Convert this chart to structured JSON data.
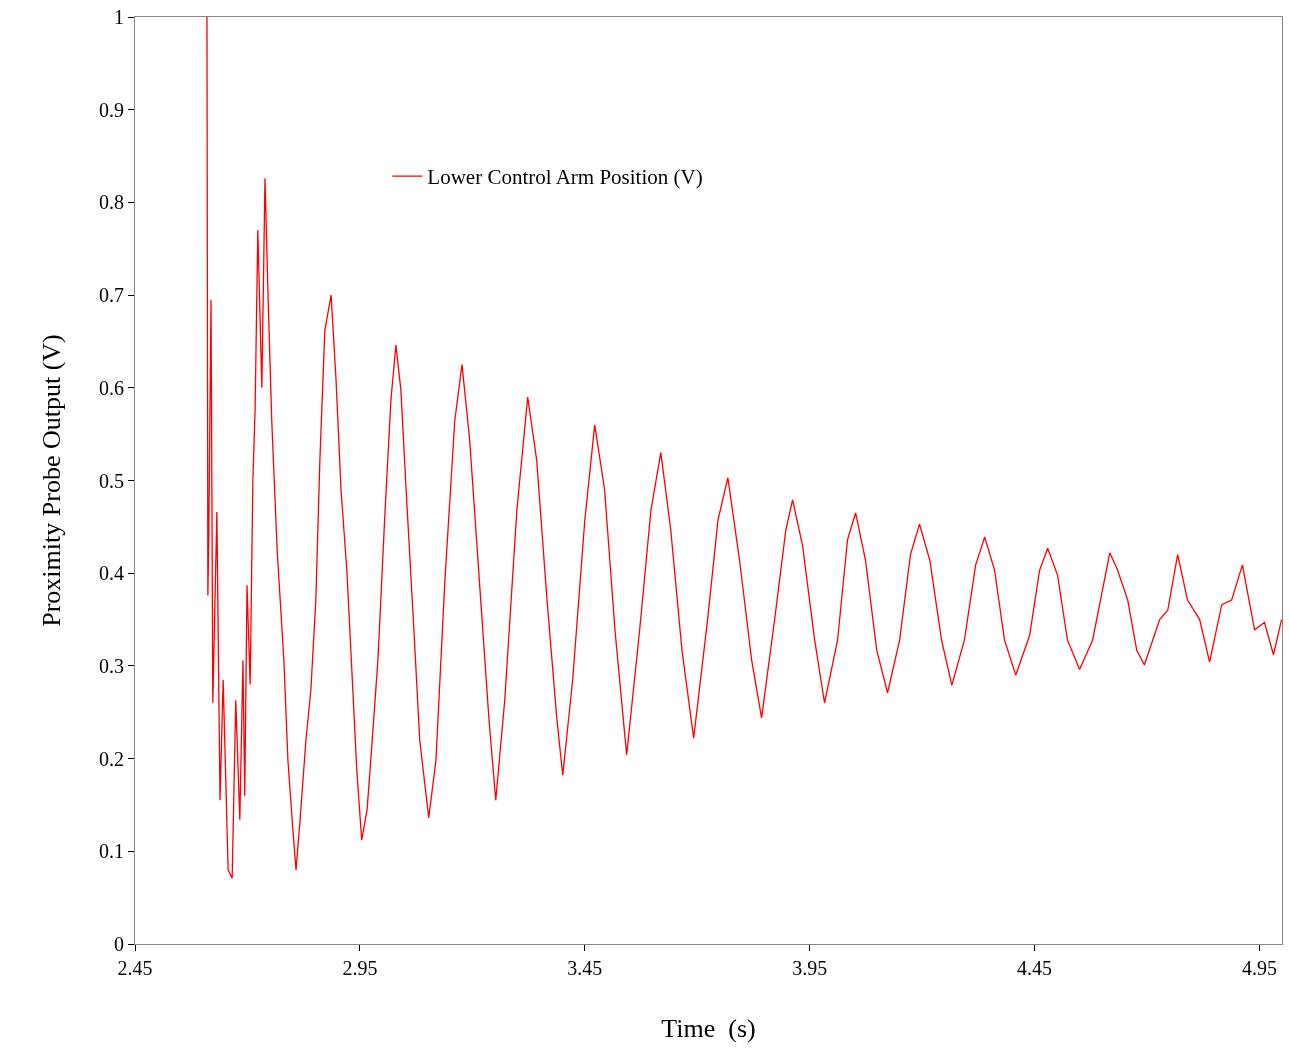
{
  "chart_data": {
    "type": "line",
    "xlabel": "Time  (s)",
    "ylabel": "Proximity Probe Output (V)",
    "xlim": [
      2.45,
      5.0
    ],
    "xticks": [
      2.45,
      2.95,
      3.45,
      3.95,
      4.45,
      4.95
    ],
    "ylim": [
      0,
      1
    ],
    "yticks": [
      0,
      0.1,
      0.2,
      0.3,
      0.4,
      0.5,
      0.6,
      0.7,
      0.8,
      0.9,
      1
    ],
    "grid": false,
    "legend": "top left",
    "marker": "none",
    "line_style": "solid",
    "series": [
      {
        "name": "Lower Control Arm Position (V)",
        "color": "#ff0000",
        "x": [
          2.61,
          2.612,
          2.614,
          2.619,
          2.623,
          2.632,
          2.639,
          2.646,
          2.657,
          2.666,
          2.674,
          2.683,
          2.69,
          2.694,
          2.699,
          2.706,
          2.712,
          2.717,
          2.723,
          2.732,
          2.739,
          2.746,
          2.754,
          2.766,
          2.781,
          2.79,
          2.801,
          2.808,
          2.817,
          2.83,
          2.841,
          2.852,
          2.861,
          2.872,
          2.886,
          2.897,
          2.908,
          2.921,
          2.932,
          2.943,
          2.954,
          2.966,
          2.979,
          2.99,
          3.006,
          3.019,
          3.03,
          3.041,
          3.054,
          3.07,
          3.083,
          3.103,
          3.119,
          3.139,
          3.161,
          3.177,
          3.194,
          3.217,
          3.237,
          3.252,
          3.272,
          3.299,
          3.323,
          3.343,
          3.366,
          3.388,
          3.401,
          3.423,
          3.45,
          3.472,
          3.494,
          3.517,
          3.543,
          3.572,
          3.597,
          3.619,
          3.641,
          3.666,
          3.692,
          3.723,
          3.746,
          3.768,
          3.794,
          3.821,
          3.843,
          3.872,
          3.897,
          3.912,
          3.934,
          3.961,
          3.983,
          4.012,
          4.034,
          4.052,
          4.074,
          4.099,
          4.123,
          4.15,
          4.174,
          4.194,
          4.217,
          4.243,
          4.266,
          4.294,
          4.319,
          4.339,
          4.361,
          4.383,
          4.408,
          4.439,
          4.461,
          4.479,
          4.501,
          4.523,
          4.55,
          4.579,
          4.601,
          4.617,
          4.634,
          4.657,
          4.677,
          4.694,
          4.728,
          4.746,
          4.768,
          4.79,
          4.817,
          4.839,
          4.866,
          4.888,
          4.912,
          4.939,
          4.961,
          4.981,
          4.999
        ],
        "values": [
          1.0,
          0.376,
          0.44,
          0.695,
          0.26,
          0.466,
          0.155,
          0.285,
          0.08,
          0.071,
          0.263,
          0.134,
          0.306,
          0.16,
          0.387,
          0.28,
          0.5,
          0.576,
          0.77,
          0.6,
          0.826,
          0.695,
          0.565,
          0.425,
          0.306,
          0.198,
          0.123,
          0.08,
          0.134,
          0.22,
          0.274,
          0.371,
          0.522,
          0.662,
          0.7,
          0.608,
          0.49,
          0.403,
          0.296,
          0.188,
          0.112,
          0.145,
          0.231,
          0.306,
          0.468,
          0.587,
          0.646,
          0.598,
          0.479,
          0.339,
          0.22,
          0.136,
          0.198,
          0.393,
          0.565,
          0.625,
          0.544,
          0.382,
          0.242,
          0.155,
          0.263,
          0.468,
          0.59,
          0.522,
          0.371,
          0.242,
          0.182,
          0.285,
          0.457,
          0.56,
          0.49,
          0.339,
          0.204,
          0.339,
          0.468,
          0.53,
          0.447,
          0.317,
          0.222,
          0.35,
          0.457,
          0.503,
          0.414,
          0.306,
          0.244,
          0.35,
          0.447,
          0.479,
          0.43,
          0.328,
          0.26,
          0.328,
          0.436,
          0.465,
          0.414,
          0.317,
          0.271,
          0.328,
          0.42,
          0.453,
          0.414,
          0.328,
          0.279,
          0.328,
          0.409,
          0.439,
          0.403,
          0.328,
          0.29,
          0.333,
          0.403,
          0.427,
          0.398,
          0.328,
          0.296,
          0.328,
          0.382,
          0.422,
          0.404,
          0.371,
          0.317,
          0.301,
          0.35,
          0.36,
          0.42,
          0.371,
          0.35,
          0.304,
          0.366,
          0.371,
          0.409,
          0.339,
          0.347,
          0.312,
          0.35
        ]
      }
    ]
  }
}
